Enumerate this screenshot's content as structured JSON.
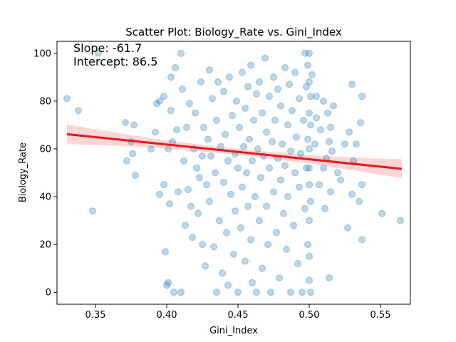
{
  "chart_data": {
    "type": "scatter",
    "title": "Scatter Plot: Biology_Rate vs. Gini_Index",
    "xlabel": "Gini_Index",
    "ylabel": "Biology_Rate",
    "xlim": [
      0.323,
      0.571
    ],
    "ylim": [
      -5,
      105
    ],
    "x_ticks": [
      0.35,
      0.4,
      0.45,
      0.5,
      0.55
    ],
    "x_tick_labels": [
      "0.35",
      "0.40",
      "0.45",
      "0.50",
      "0.55"
    ],
    "y_ticks": [
      0,
      20,
      40,
      60,
      80,
      100
    ],
    "y_tick_labels": [
      "0",
      "20",
      "40",
      "60",
      "80",
      "100"
    ],
    "grid": false,
    "point_color": "#1f77b4",
    "line_color": "#e41a1c",
    "band_color": "#ffb3b3",
    "annotations": [
      "Slope: -61.7",
      "Intercept: 86.5"
    ],
    "regression": {
      "slope": -61.7,
      "intercept": 86.5,
      "x_range": [
        0.33,
        0.565
      ],
      "ci_halfwidth_left": 4.2,
      "ci_halfwidth_mid": 1.3,
      "ci_halfwidth_right": 4.0
    },
    "points": [
      [
        0.33,
        81
      ],
      [
        0.338,
        76
      ],
      [
        0.348,
        34
      ],
      [
        0.352,
        100
      ],
      [
        0.371,
        71
      ],
      [
        0.372,
        55
      ],
      [
        0.375,
        63
      ],
      [
        0.376,
        58
      ],
      [
        0.377,
        70
      ],
      [
        0.378,
        49
      ],
      [
        0.389,
        60
      ],
      [
        0.392,
        67
      ],
      [
        0.393,
        79
      ],
      [
        0.395,
        80
      ],
      [
        0.395,
        41
      ],
      [
        0.398,
        82
      ],
      [
        0.398,
        45
      ],
      [
        0.399,
        17
      ],
      [
        0.4,
        3
      ],
      [
        0.401,
        4
      ],
      [
        0.401,
        60
      ],
      [
        0.402,
        37
      ],
      [
        0.403,
        90
      ],
      [
        0.403,
        76
      ],
      [
        0.404,
        63
      ],
      [
        0.405,
        0
      ],
      [
        0.406,
        94
      ],
      [
        0.407,
        68
      ],
      [
        0.408,
        42
      ],
      [
        0.41,
        100
      ],
      [
        0.41,
        0
      ],
      [
        0.411,
        85
      ],
      [
        0.412,
        55
      ],
      [
        0.413,
        28
      ],
      [
        0.414,
        69
      ],
      [
        0.415,
        43
      ],
      [
        0.416,
        79
      ],
      [
        0.417,
        36
      ],
      [
        0.418,
        23
      ],
      [
        0.419,
        60
      ],
      [
        0.42,
        75
      ],
      [
        0.421,
        52
      ],
      [
        0.422,
        33
      ],
      [
        0.423,
        48
      ],
      [
        0.424,
        88
      ],
      [
        0.425,
        57
      ],
      [
        0.425,
        20
      ],
      [
        0.426,
        69
      ],
      [
        0.427,
        11
      ],
      [
        0.428,
        45
      ],
      [
        0.429,
        64
      ],
      [
        0.43,
        93
      ],
      [
        0.43,
        38
      ],
      [
        0.431,
        57
      ],
      [
        0.432,
        81
      ],
      [
        0.433,
        19
      ],
      [
        0.434,
        50
      ],
      [
        0.435,
        0
      ],
      [
        0.435,
        72
      ],
      [
        0.436,
        88
      ],
      [
        0.437,
        30
      ],
      [
        0.438,
        61
      ],
      [
        0.439,
        8
      ],
      [
        0.44,
        46
      ],
      [
        0.44,
        84
      ],
      [
        0.441,
        66
      ],
      [
        0.442,
        25
      ],
      [
        0.443,
        55
      ],
      [
        0.443,
        3
      ],
      [
        0.444,
        90
      ],
      [
        0.445,
        41
      ],
      [
        0.446,
        74
      ],
      [
        0.447,
        16
      ],
      [
        0.448,
        58
      ],
      [
        0.448,
        34
      ],
      [
        0.449,
        80
      ],
      [
        0.45,
        52
      ],
      [
        0.45,
        0
      ],
      [
        0.451,
        69
      ],
      [
        0.452,
        27
      ],
      [
        0.453,
        92
      ],
      [
        0.453,
        44
      ],
      [
        0.454,
        61
      ],
      [
        0.455,
        13
      ],
      [
        0.455,
        77
      ],
      [
        0.456,
        50
      ],
      [
        0.457,
        86
      ],
      [
        0.457,
        36
      ],
      [
        0.458,
        64
      ],
      [
        0.459,
        22
      ],
      [
        0.459,
        95
      ],
      [
        0.46,
        55
      ],
      [
        0.46,
        4
      ],
      [
        0.461,
        72
      ],
      [
        0.462,
        40
      ],
      [
        0.463,
        83
      ],
      [
        0.463,
        0
      ],
      [
        0.464,
        60
      ],
      [
        0.465,
        30
      ],
      [
        0.465,
        88
      ],
      [
        0.466,
        48
      ],
      [
        0.467,
        75
      ],
      [
        0.467,
        10
      ],
      [
        0.468,
        57
      ],
      [
        0.469,
        98
      ],
      [
        0.47,
        36
      ],
      [
        0.47,
        67
      ],
      [
        0.471,
        20
      ],
      [
        0.472,
        82
      ],
      [
        0.472,
        52
      ],
      [
        0.473,
        0
      ],
      [
        0.474,
        63
      ],
      [
        0.475,
        90
      ],
      [
        0.475,
        42
      ],
      [
        0.476,
        72
      ],
      [
        0.477,
        25
      ],
      [
        0.478,
        56
      ],
      [
        0.478,
        85
      ],
      [
        0.479,
        6
      ],
      [
        0.48,
        47
      ],
      [
        0.48,
        78
      ],
      [
        0.481,
        62
      ],
      [
        0.482,
        33
      ],
      [
        0.483,
        94
      ],
      [
        0.483,
        53
      ],
      [
        0.484,
        18
      ],
      [
        0.485,
        70
      ],
      [
        0.485,
        40
      ],
      [
        0.486,
        87
      ],
      [
        0.487,
        59
      ],
      [
        0.487,
        0
      ],
      [
        0.488,
        76
      ],
      [
        0.489,
        28
      ],
      [
        0.49,
        50
      ],
      [
        0.49,
        92
      ],
      [
        0.491,
        65
      ],
      [
        0.492,
        12
      ],
      [
        0.493,
        44
      ],
      [
        0.493,
        81
      ],
      [
        0.494,
        58
      ],
      [
        0.495,
        0
      ],
      [
        0.496,
        72
      ],
      [
        0.497,
        100
      ],
      [
        0.497,
        35
      ],
      [
        0.498,
        86
      ],
      [
        0.498,
        52
      ],
      [
        0.499,
        20
      ],
      [
        0.499,
        64
      ],
      [
        0.499,
        95
      ],
      [
        0.5,
        5
      ],
      [
        0.5,
        45
      ],
      [
        0.5,
        75
      ],
      [
        0.5,
        100
      ],
      [
        0.5,
        30
      ],
      [
        0.5,
        60
      ],
      [
        0.5,
        88
      ],
      [
        0.5,
        15
      ],
      [
        0.5,
        52
      ],
      [
        0.501,
        70
      ],
      [
        0.501,
        0
      ],
      [
        0.501,
        38
      ],
      [
        0.501,
        82
      ],
      [
        0.502,
        91
      ],
      [
        0.504,
        62
      ],
      [
        0.505,
        73
      ],
      [
        0.505,
        82
      ],
      [
        0.507,
        45
      ],
      [
        0.508,
        68
      ],
      [
        0.51,
        52
      ],
      [
        0.51,
        80
      ],
      [
        0.511,
        35
      ],
      [
        0.512,
        56
      ],
      [
        0.513,
        75
      ],
      [
        0.514,
        6
      ],
      [
        0.514,
        63
      ],
      [
        0.515,
        42
      ],
      [
        0.515,
        69
      ],
      [
        0.516,
        59
      ],
      [
        0.517,
        78
      ],
      [
        0.52,
        50
      ],
      [
        0.522,
        47
      ],
      [
        0.525,
        62
      ],
      [
        0.527,
        27
      ],
      [
        0.528,
        67
      ],
      [
        0.53,
        41
      ],
      [
        0.53,
        87
      ],
      [
        0.531,
        55
      ],
      [
        0.533,
        62
      ],
      [
        0.535,
        38
      ],
      [
        0.536,
        71
      ],
      [
        0.537,
        82
      ],
      [
        0.537,
        22
      ],
      [
        0.537,
        45
      ],
      [
        0.551,
        33
      ],
      [
        0.564,
        30
      ]
    ]
  }
}
